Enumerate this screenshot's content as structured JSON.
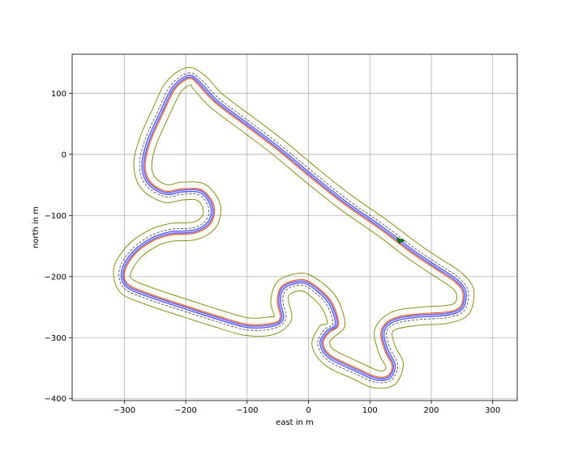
{
  "chart_data": {
    "type": "line",
    "title": "",
    "xlabel": "east in m",
    "ylabel": "north in m",
    "xlim": [
      -385,
      340
    ],
    "ylim": [
      -403,
      164
    ],
    "xticks": [
      -300,
      -200,
      -100,
      0,
      100,
      200,
      300
    ],
    "yticks": [
      -400,
      -300,
      -200,
      -100,
      0,
      100
    ],
    "xtick_labels": [
      "−300",
      "−200",
      "−100",
      "0",
      "100",
      "200",
      "300"
    ],
    "ytick_labels": [
      "−400",
      "−300",
      "−200",
      "−100",
      "0",
      "100"
    ],
    "grid": true,
    "legend": "none",
    "centerline": [
      [
        -195,
        128
      ],
      [
        -178,
        118
      ],
      [
        -150,
        88
      ],
      [
        -100,
        50
      ],
      [
        -50,
        12
      ],
      [
        0,
        -30
      ],
      [
        60,
        -78
      ],
      [
        120,
        -120
      ],
      [
        170,
        -158
      ],
      [
        210,
        -185
      ],
      [
        240,
        -205
      ],
      [
        255,
        -225
      ],
      [
        250,
        -252
      ],
      [
        225,
        -262
      ],
      [
        180,
        -265
      ],
      [
        140,
        -272
      ],
      [
        122,
        -290
      ],
      [
        128,
        -320
      ],
      [
        140,
        -345
      ],
      [
        132,
        -365
      ],
      [
        110,
        -368
      ],
      [
        80,
        -355
      ],
      [
        35,
        -333
      ],
      [
        20,
        -310
      ],
      [
        30,
        -290
      ],
      [
        45,
        -278
      ],
      [
        35,
        -245
      ],
      [
        15,
        -223
      ],
      [
        -10,
        -209
      ],
      [
        -40,
        -218
      ],
      [
        -47,
        -240
      ],
      [
        -42,
        -268
      ],
      [
        -58,
        -280
      ],
      [
        -100,
        -282
      ],
      [
        -150,
        -268
      ],
      [
        -200,
        -252
      ],
      [
        -260,
        -232
      ],
      [
        -297,
        -215
      ],
      [
        -303,
        -190
      ],
      [
        -285,
        -160
      ],
      [
        -255,
        -138
      ],
      [
        -225,
        -128
      ],
      [
        -185,
        -125
      ],
      [
        -162,
        -110
      ],
      [
        -158,
        -85
      ],
      [
        -175,
        -62
      ],
      [
        -205,
        -60
      ],
      [
        -233,
        -64
      ],
      [
        -260,
        -48
      ],
      [
        -270,
        -20
      ],
      [
        -262,
        20
      ],
      [
        -240,
        70
      ],
      [
        -220,
        110
      ]
    ],
    "vehicle": {
      "east": 150,
      "north": -140
    },
    "colors": {
      "boundary": "#808000",
      "race_line": "#ff5500",
      "center_line": "#5555ff",
      "reference": "#222222",
      "vehicle": "#007700",
      "grid": "#b0b0b0"
    }
  }
}
